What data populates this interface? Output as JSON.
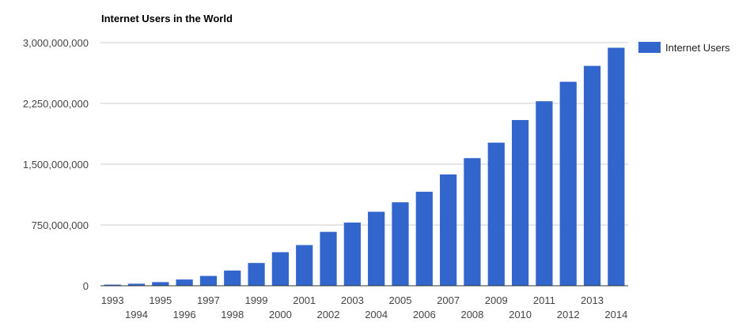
{
  "chart_data": {
    "type": "bar",
    "title": "Internet Users in the World",
    "xlabel": "",
    "ylabel": "",
    "categories": [
      "1993",
      "1994",
      "1995",
      "1996",
      "1997",
      "1998",
      "1999",
      "2000",
      "2001",
      "2002",
      "2003",
      "2004",
      "2005",
      "2006",
      "2007",
      "2008",
      "2009",
      "2010",
      "2011",
      "2012",
      "2013",
      "2014"
    ],
    "series": [
      {
        "name": "Internet Users",
        "color": "#3366cc",
        "values": [
          14000000,
          25000000,
          45000000,
          77000000,
          121000000,
          188000000,
          281000000,
          414000000,
          502000000,
          665000000,
          780000000,
          913000000,
          1030000000,
          1160000000,
          1373000000,
          1575000000,
          1766000000,
          2045000000,
          2277000000,
          2517000000,
          2713000000,
          2937000000
        ]
      }
    ],
    "ylim": [
      0,
      3000000000
    ],
    "yticks": [
      0,
      750000000,
      1500000000,
      2250000000,
      3000000000
    ],
    "ytick_labels": [
      "0",
      "750,000,000",
      "1,500,000,000",
      "2,250,000,000",
      "3,000,000,000"
    ],
    "grid": true,
    "legend_position": "right"
  }
}
